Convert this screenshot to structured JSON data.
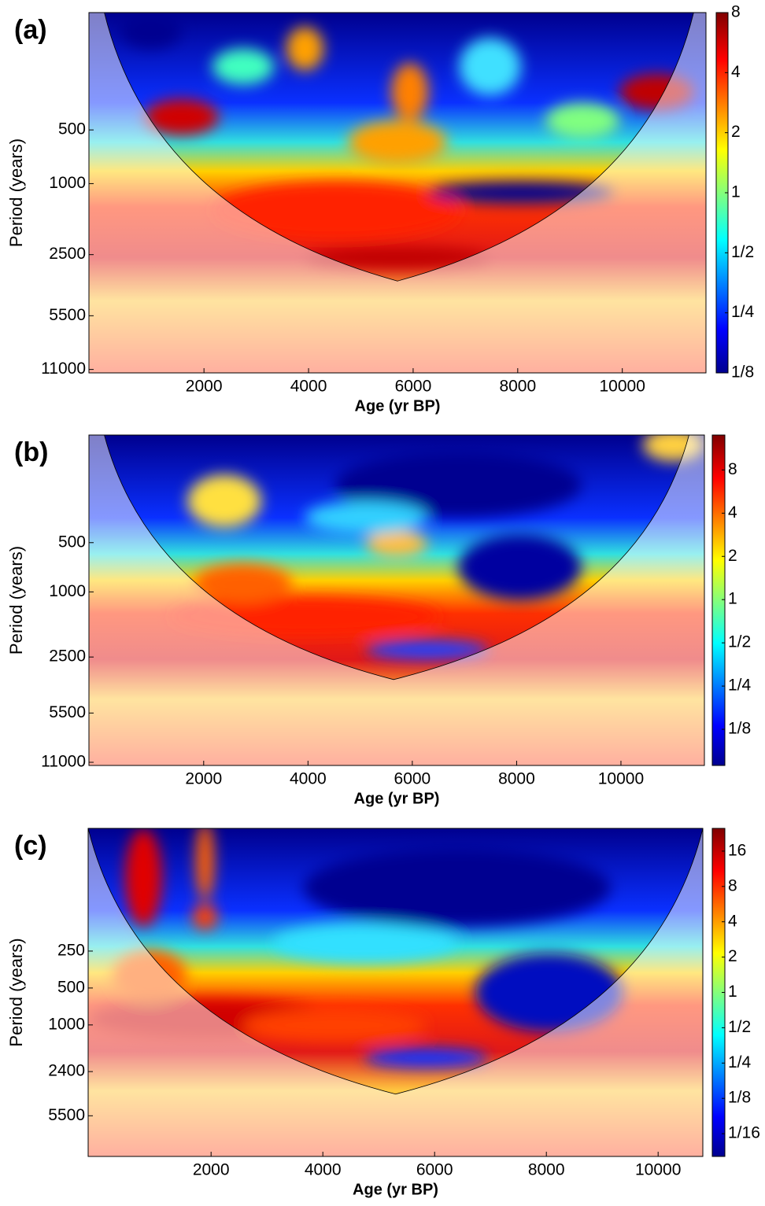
{
  "chart_data": [
    {
      "type": "heatmap",
      "panel_label": "(a)",
      "xlabel": "Age (yr BP)",
      "ylabel": "Period (years)",
      "xlim": [
        -200,
        11600
      ],
      "xticks": [
        2000,
        4000,
        6000,
        8000,
        10000
      ],
      "ylim": [
        110,
        11500
      ],
      "ylog": true,
      "yreverse": true,
      "yticks": [
        500,
        1000,
        2500,
        5500,
        11000
      ],
      "clim": [
        0.125,
        8
      ],
      "clog": true,
      "cticks": [
        8,
        4,
        2,
        1,
        {
          "value": 0.5,
          "label": "1/2"
        },
        {
          "value": 0.25,
          "label": "1/4"
        },
        {
          "value": 0.125,
          "label": "1/8"
        }
      ]
    },
    {
      "type": "heatmap",
      "panel_label": "(b)",
      "xlabel": "Age (yr BP)",
      "ylabel": "Period (years)",
      "xlim": [
        -200,
        11600
      ],
      "xticks": [
        2000,
        4000,
        6000,
        8000,
        10000
      ],
      "ylim": [
        110,
        11500
      ],
      "ylog": true,
      "yreverse": true,
      "yticks": [
        500,
        1000,
        2500,
        5500,
        11000
      ],
      "clim": [
        0.07,
        14
      ],
      "clog": true,
      "cticks": [
        8,
        4,
        2,
        1,
        {
          "value": 0.5,
          "label": "1/2"
        },
        {
          "value": 0.25,
          "label": "1/4"
        },
        {
          "value": 0.125,
          "label": "1/8"
        }
      ]
    },
    {
      "type": "heatmap",
      "panel_label": "(c)",
      "xlabel": "Age (yr BP)",
      "ylabel": "Period (years)",
      "xlim": [
        -200,
        10800
      ],
      "xticks": [
        2000,
        4000,
        6000,
        8000,
        10000
      ],
      "ylim": [
        25,
        11800
      ],
      "ylog": true,
      "yreverse": true,
      "yticks": [
        250,
        500,
        1000,
        2400,
        5500
      ],
      "clim": [
        0.04,
        25
      ],
      "clog": true,
      "cticks": [
        16,
        8,
        4,
        2,
        1,
        {
          "value": 0.5,
          "label": "1/2"
        },
        {
          "value": 0.25,
          "label": "1/4"
        },
        {
          "value": 0.125,
          "label": "1/8"
        },
        {
          "value": 0.0625,
          "label": "1/16"
        }
      ]
    }
  ]
}
